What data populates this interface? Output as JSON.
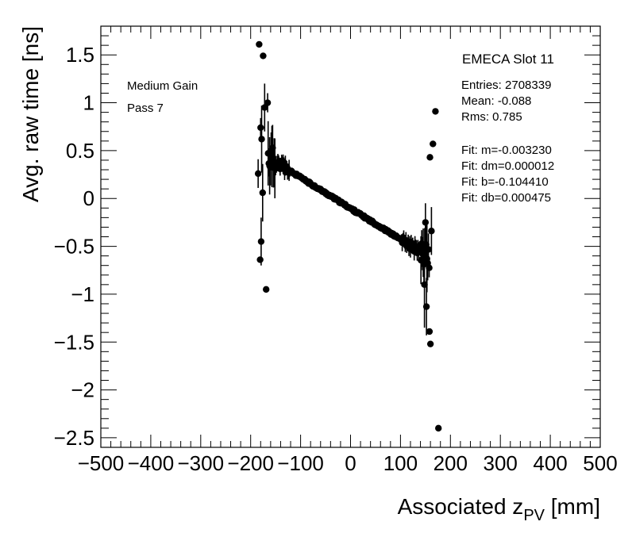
{
  "chart_data": {
    "type": "scatter",
    "title": "EMECA Slot 11",
    "xlabel_main": "Associated z",
    "xlabel_sub": "PV",
    "xlabel_unit": " [mm]",
    "ylabel": "Avg. raw time [ns]",
    "xlim": [
      -500,
      500
    ],
    "ylim": [
      -2.6,
      1.8
    ],
    "x_ticks": [
      -500,
      -400,
      -300,
      -200,
      -100,
      0,
      100,
      200,
      300,
      400,
      500
    ],
    "x_tick_labels": [
      "−500",
      "−400",
      "−300",
      "−200",
      "−100",
      "0",
      "100",
      "200",
      "300",
      "400",
      "500"
    ],
    "y_ticks": [
      1.5,
      1,
      0.5,
      0,
      -0.5,
      -1,
      -1.5,
      -2,
      -2.5
    ],
    "y_tick_labels": [
      "1.5",
      "1",
      "0.5",
      "0",
      "−0.5",
      "−1",
      "−1.5",
      "−2",
      "−2.5"
    ],
    "annotations": [
      "Medium Gain",
      "Pass 7"
    ],
    "stats": [
      "Entries: 2708339",
      "Mean: -0.088",
      "Rms: 0.785"
    ],
    "fit_text": [
      "Fit: m=-0.003230",
      "Fit: dm=0.000012",
      "Fit: b=-0.104410",
      "Fit: db=0.000475"
    ],
    "fit": {
      "m": -0.00323,
      "b": -0.10441,
      "x_range": [
        -155,
        148
      ],
      "color": "#ff0000"
    },
    "marker_color": "#000000",
    "outlier_points": [
      {
        "x": -183,
        "y": 1.61,
        "err": 0
      },
      {
        "x": -175,
        "y": 1.49,
        "err": 0
      },
      {
        "x": -180,
        "y": 0.74,
        "err": 0.1
      },
      {
        "x": -178,
        "y": 0.62,
        "err": 0.35
      },
      {
        "x": -185,
        "y": 0.26,
        "err": 0.15
      },
      {
        "x": -176,
        "y": 0.06,
        "err": 0.3
      },
      {
        "x": -179,
        "y": -0.45,
        "err": 0.25
      },
      {
        "x": -181,
        "y": -0.64,
        "err": 0
      },
      {
        "x": -169,
        "y": -0.95,
        "err": 0
      },
      {
        "x": -172,
        "y": 0.95,
        "err": 0.25
      },
      {
        "x": -166,
        "y": 1.0,
        "err": 0.1
      },
      {
        "x": 170,
        "y": 0.91,
        "err": 0
      },
      {
        "x": 165,
        "y": 0.57,
        "err": 0
      },
      {
        "x": 159,
        "y": 0.43,
        "err": 0
      },
      {
        "x": 150,
        "y": -0.25,
        "err": 0.2
      },
      {
        "x": 162,
        "y": -0.34,
        "err": 0.25
      },
      {
        "x": 153,
        "y": -0.63,
        "err": 0.35
      },
      {
        "x": 148,
        "y": -0.9,
        "err": 0.45
      },
      {
        "x": 152,
        "y": -1.13,
        "err": 0.3
      },
      {
        "x": 158,
        "y": -1.39,
        "err": 0
      },
      {
        "x": 160,
        "y": -1.52,
        "err": 0
      },
      {
        "x": 176,
        "y": -2.4,
        "err": 0
      }
    ]
  }
}
